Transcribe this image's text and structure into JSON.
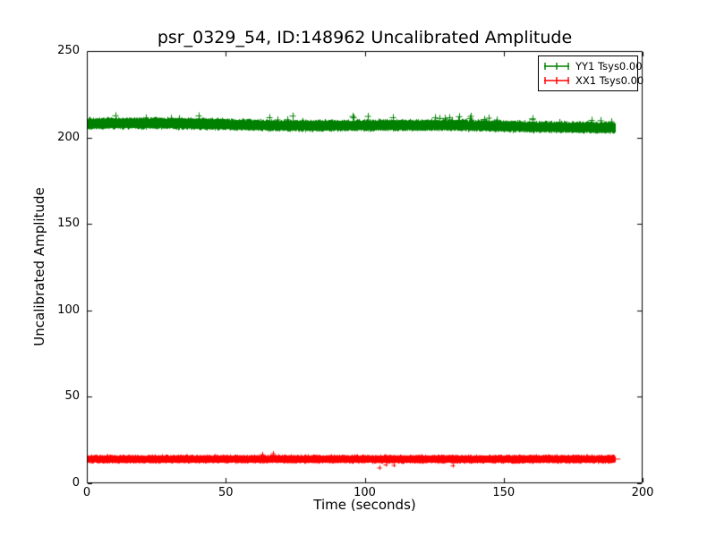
{
  "chart_data": {
    "type": "line",
    "title": "psr_0329_54, ID:148962 Uncalibrated Amplitude",
    "xlabel": "Time (seconds)",
    "ylabel": "Uncalibrated Amplitude",
    "xlim": [
      0,
      200
    ],
    "ylim": [
      0,
      250
    ],
    "xticks": [
      0,
      50,
      100,
      150,
      200
    ],
    "yticks": [
      0,
      50,
      100,
      150,
      200,
      250
    ],
    "grid": false,
    "legend_position": "upper right",
    "axis_color": "#000000",
    "background_color": "#ffffff",
    "series": [
      {
        "name": "YY1 Tsys0.00",
        "color": "#008000",
        "marker": "plus",
        "style": "dense noisy band of errorbar points",
        "x_start_seconds": 0,
        "x_end_seconds": 190,
        "mean_amplitude": 207.5,
        "band_low": 203,
        "band_high": 212,
        "spike_max": 215,
        "trend": "nearly flat, slight decline from ~208.5 to ~206.5"
      },
      {
        "name": "XX1 Tsys0.00",
        "color": "#ff0000",
        "marker": "plus",
        "style": "dense noisy band of errorbar points",
        "x_start_seconds": 0,
        "x_end_seconds": 192,
        "mean_amplitude": 14,
        "band_low": 12,
        "band_high": 17,
        "spike_max": 18,
        "trend": "flat"
      }
    ]
  }
}
